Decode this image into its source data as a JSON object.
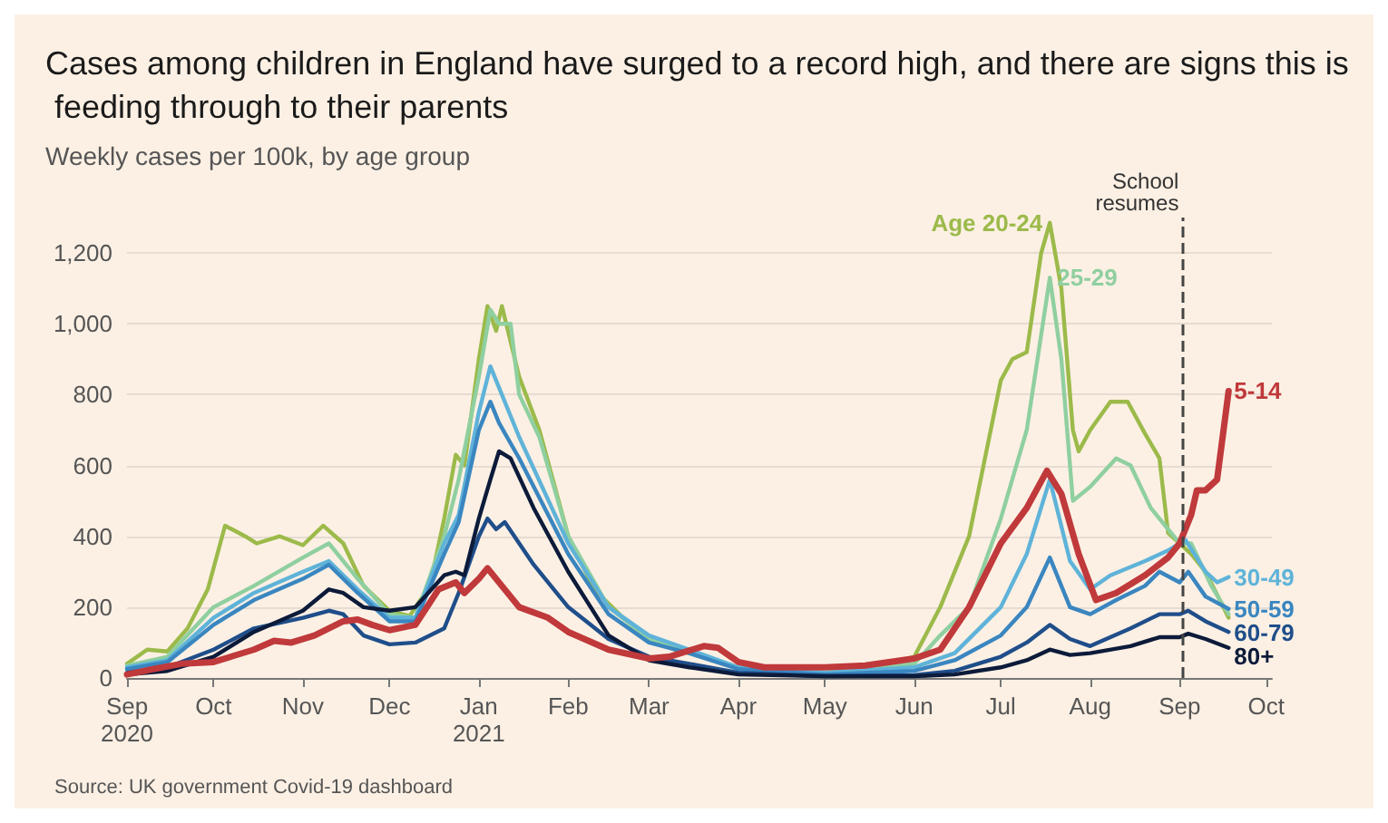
{
  "chart_data": {
    "type": "line",
    "title": "Cases among children in England have surged to a record high, and there are signs this is feeding through to their parents",
    "subtitle": "Weekly cases per 100k, by age group",
    "annotations": [
      "Source: UK government Covid-19 dashboard"
    ],
    "xlim": [
      "2020-09-01",
      "2021-10-03"
    ],
    "xticks": [
      {
        "value": "2020-09-01",
        "label": "Sep\n2020"
      },
      {
        "value": "2020-10-01",
        "label": "Oct"
      },
      {
        "value": "2020-11-01",
        "label": "Nov"
      },
      {
        "value": "2020-12-01",
        "label": "Dec"
      },
      {
        "value": "2021-01-01",
        "label": "Jan\n2021"
      },
      {
        "value": "2021-02-01",
        "label": "Feb"
      },
      {
        "value": "2021-03-01",
        "label": "Mar"
      },
      {
        "value": "2021-04-01",
        "label": "Apr"
      },
      {
        "value": "2021-05-01",
        "label": "May"
      },
      {
        "value": "2021-06-01",
        "label": "Jun"
      },
      {
        "value": "2021-07-01",
        "label": "Jul"
      },
      {
        "value": "2021-08-01",
        "label": "Aug"
      },
      {
        "value": "2021-09-01",
        "label": "Sep"
      },
      {
        "value": "2021-10-01",
        "label": "Oct"
      }
    ],
    "ylim": [
      0,
      1300
    ],
    "yticks": [
      0,
      200,
      400,
      600,
      800,
      {
        "value": 1000,
        "label": "1,000"
      },
      {
        "value": 1200,
        "label": "1,200"
      }
    ],
    "grid": "y",
    "legend": false,
    "marker": "none",
    "line_style": "solid",
    "ref_lines": [
      {
        "axis": "x",
        "value": "2021-09-02",
        "label": "School\nresumes",
        "line_style": "dashed",
        "color": "#444444"
      }
    ],
    "series": [
      {
        "name": "Age 20-24",
        "color": "#9cba4a",
        "x": [
          "2020-09-01",
          "2020-09-08",
          "2020-09-15",
          "2020-09-22",
          "2020-09-29",
          "2020-10-05",
          "2020-10-12",
          "2020-10-16",
          "2020-10-24",
          "2020-11-01",
          "2020-11-08",
          "2020-11-15",
          "2020-11-22",
          "2020-12-01",
          "2020-12-08",
          "2020-12-15",
          "2020-12-20",
          "2020-12-24",
          "2020-12-27",
          "2021-01-01",
          "2021-01-04",
          "2021-01-07",
          "2021-01-09",
          "2021-01-15",
          "2021-01-22",
          "2021-02-01",
          "2021-02-10",
          "2021-02-20",
          "2021-03-01",
          "2021-03-10",
          "2021-03-20",
          "2021-04-01",
          "2021-04-15",
          "2021-05-01",
          "2021-05-15",
          "2021-06-01",
          "2021-06-10",
          "2021-06-20",
          "2021-07-01",
          "2021-07-05",
          "2021-07-10",
          "2021-07-15",
          "2021-07-18",
          "2021-07-22",
          "2021-07-26",
          "2021-07-28",
          "2021-08-01",
          "2021-08-08",
          "2021-08-14",
          "2021-08-20",
          "2021-08-25",
          "2021-08-28",
          "2021-09-01",
          "2021-09-05",
          "2021-09-10",
          "2021-09-18"
        ],
        "values": [
          40,
          80,
          75,
          140,
          250,
          430,
          400,
          380,
          400,
          375,
          430,
          380,
          260,
          190,
          175,
          260,
          450,
          630,
          600,
          900,
          1050,
          980,
          1050,
          850,
          700,
          400,
          250,
          170,
          110,
          80,
          60,
          30,
          20,
          15,
          20,
          60,
          200,
          400,
          840,
          900,
          920,
          1200,
          1285,
          1100,
          700,
          640,
          700,
          780,
          780,
          690,
          620,
          410,
          380,
          350,
          300,
          170
        ]
      },
      {
        "name": "25-29",
        "color": "#8fcfa0",
        "x": [
          "2020-09-01",
          "2020-09-15",
          "2020-10-01",
          "2020-10-15",
          "2020-11-01",
          "2020-11-10",
          "2020-11-20",
          "2020-12-01",
          "2020-12-10",
          "2020-12-20",
          "2020-12-25",
          "2021-01-01",
          "2021-01-05",
          "2021-01-08",
          "2021-01-12",
          "2021-01-15",
          "2021-01-22",
          "2021-02-01",
          "2021-02-15",
          "2021-03-01",
          "2021-03-15",
          "2021-04-01",
          "2021-05-01",
          "2021-06-01",
          "2021-06-10",
          "2021-06-20",
          "2021-07-01",
          "2021-07-10",
          "2021-07-18",
          "2021-07-22",
          "2021-07-26",
          "2021-08-01",
          "2021-08-10",
          "2021-08-15",
          "2021-08-22",
          "2021-09-01",
          "2021-09-05",
          "2021-09-12",
          "2021-09-18"
        ],
        "values": [
          35,
          60,
          200,
          260,
          340,
          380,
          280,
          180,
          170,
          400,
          560,
          850,
          1040,
          1000,
          1000,
          800,
          680,
          400,
          200,
          110,
          70,
          30,
          15,
          40,
          120,
          200,
          450,
          700,
          1130,
          900,
          500,
          540,
          620,
          600,
          480,
          380,
          380,
          260,
          180
        ]
      },
      {
        "name": "30-49",
        "color": "#5fb3d9",
        "x": [
          "2020-09-01",
          "2020-09-15",
          "2020-10-01",
          "2020-10-15",
          "2020-11-01",
          "2020-11-10",
          "2020-11-20",
          "2020-12-01",
          "2020-12-10",
          "2020-12-20",
          "2020-12-25",
          "2021-01-01",
          "2021-01-05",
          "2021-01-08",
          "2021-01-15",
          "2021-02-01",
          "2021-02-15",
          "2021-03-01",
          "2021-03-15",
          "2021-04-01",
          "2021-05-01",
          "2021-06-01",
          "2021-06-15",
          "2021-07-01",
          "2021-07-10",
          "2021-07-18",
          "2021-07-25",
          "2021-08-01",
          "2021-08-08",
          "2021-08-20",
          "2021-08-28",
          "2021-09-03",
          "2021-09-10",
          "2021-09-14",
          "2021-09-18"
        ],
        "values": [
          30,
          50,
          170,
          240,
          300,
          330,
          250,
          170,
          170,
          380,
          460,
          750,
          880,
          820,
          680,
          380,
          200,
          120,
          80,
          30,
          15,
          30,
          70,
          200,
          350,
          560,
          330,
          250,
          290,
          330,
          360,
          390,
          300,
          270,
          285
        ]
      },
      {
        "name": "50-59",
        "color": "#3a86c0",
        "x": [
          "2020-09-01",
          "2020-09-15",
          "2020-10-01",
          "2020-10-15",
          "2020-11-01",
          "2020-11-10",
          "2020-11-20",
          "2020-12-01",
          "2020-12-10",
          "2020-12-20",
          "2020-12-25",
          "2021-01-01",
          "2021-01-05",
          "2021-01-08",
          "2021-01-15",
          "2021-02-01",
          "2021-02-15",
          "2021-03-01",
          "2021-03-15",
          "2021-04-01",
          "2021-05-01",
          "2021-06-01",
          "2021-06-15",
          "2021-07-01",
          "2021-07-10",
          "2021-07-18",
          "2021-07-25",
          "2021-08-01",
          "2021-08-10",
          "2021-08-20",
          "2021-08-25",
          "2021-09-01",
          "2021-09-04",
          "2021-09-10",
          "2021-09-18"
        ],
        "values": [
          25,
          45,
          150,
          220,
          280,
          320,
          240,
          160,
          160,
          350,
          440,
          700,
          780,
          720,
          620,
          350,
          180,
          100,
          70,
          25,
          10,
          20,
          50,
          120,
          200,
          340,
          200,
          180,
          220,
          260,
          300,
          270,
          300,
          230,
          195
        ]
      },
      {
        "name": "60-79",
        "color": "#1f4e8a",
        "x": [
          "2020-09-01",
          "2020-09-15",
          "2020-10-01",
          "2020-10-15",
          "2020-11-01",
          "2020-11-10",
          "2020-11-15",
          "2020-11-22",
          "2020-12-01",
          "2020-12-10",
          "2020-12-20",
          "2020-12-25",
          "2021-01-01",
          "2021-01-04",
          "2021-01-07",
          "2021-01-10",
          "2021-01-20",
          "2021-02-01",
          "2021-02-15",
          "2021-03-01",
          "2021-03-15",
          "2021-04-01",
          "2021-05-01",
          "2021-06-01",
          "2021-06-15",
          "2021-07-01",
          "2021-07-10",
          "2021-07-18",
          "2021-07-25",
          "2021-08-01",
          "2021-08-15",
          "2021-08-25",
          "2021-09-01",
          "2021-09-04",
          "2021-09-10",
          "2021-09-18"
        ],
        "values": [
          15,
          30,
          80,
          140,
          170,
          190,
          180,
          120,
          95,
          100,
          140,
          240,
          400,
          450,
          420,
          440,
          320,
          200,
          110,
          60,
          40,
          15,
          5,
          8,
          20,
          60,
          100,
          150,
          110,
          90,
          140,
          180,
          180,
          190,
          160,
          130
        ]
      },
      {
        "name": "80+",
        "color": "#0d1b3a",
        "x": [
          "2020-09-01",
          "2020-09-15",
          "2020-10-01",
          "2020-10-15",
          "2020-11-01",
          "2020-11-10",
          "2020-11-15",
          "2020-11-22",
          "2020-12-01",
          "2020-12-10",
          "2020-12-20",
          "2020-12-24",
          "2020-12-27",
          "2021-01-01",
          "2021-01-05",
          "2021-01-08",
          "2021-01-12",
          "2021-01-20",
          "2021-02-01",
          "2021-02-15",
          "2021-03-01",
          "2021-03-15",
          "2021-04-01",
          "2021-05-01",
          "2021-06-01",
          "2021-06-15",
          "2021-07-01",
          "2021-07-10",
          "2021-07-18",
          "2021-07-25",
          "2021-08-01",
          "2021-08-15",
          "2021-08-25",
          "2021-09-01",
          "2021-09-04",
          "2021-09-10",
          "2021-09-18"
        ],
        "values": [
          10,
          20,
          60,
          130,
          190,
          250,
          240,
          200,
          190,
          200,
          290,
          300,
          290,
          450,
          560,
          640,
          620,
          480,
          300,
          120,
          50,
          30,
          10,
          5,
          5,
          10,
          30,
          50,
          80,
          65,
          70,
          90,
          115,
          115,
          125,
          110,
          85
        ]
      },
      {
        "name": "5-14",
        "color": "#c0393b",
        "x": [
          "2020-09-01",
          "2020-09-10",
          "2020-09-20",
          "2020-10-01",
          "2020-10-15",
          "2020-10-22",
          "2020-10-28",
          "2020-11-05",
          "2020-11-15",
          "2020-11-20",
          "2020-11-25",
          "2020-12-01",
          "2020-12-10",
          "2020-12-18",
          "2020-12-24",
          "2020-12-27",
          "2021-01-01",
          "2021-01-04",
          "2021-01-07",
          "2021-01-15",
          "2021-01-25",
          "2021-02-01",
          "2021-02-15",
          "2021-03-01",
          "2021-03-08",
          "2021-03-20",
          "2021-03-25",
          "2021-04-01",
          "2021-04-10",
          "2021-05-01",
          "2021-05-15",
          "2021-06-01",
          "2021-06-10",
          "2021-06-20",
          "2021-07-01",
          "2021-07-10",
          "2021-07-17",
          "2021-07-22",
          "2021-07-28",
          "2021-08-03",
          "2021-08-10",
          "2021-08-20",
          "2021-08-28",
          "2021-09-01",
          "2021-09-05",
          "2021-09-07",
          "2021-09-10",
          "2021-09-14",
          "2021-09-18"
        ],
        "values": [
          10,
          25,
          40,
          45,
          80,
          105,
          100,
          120,
          160,
          165,
          150,
          135,
          150,
          250,
          270,
          240,
          280,
          310,
          280,
          200,
          170,
          130,
          80,
          55,
          60,
          90,
          85,
          45,
          30,
          30,
          35,
          55,
          80,
          200,
          380,
          480,
          585,
          520,
          350,
          220,
          240,
          290,
          340,
          380,
          460,
          530,
          530,
          560,
          810
        ]
      }
    ]
  }
}
